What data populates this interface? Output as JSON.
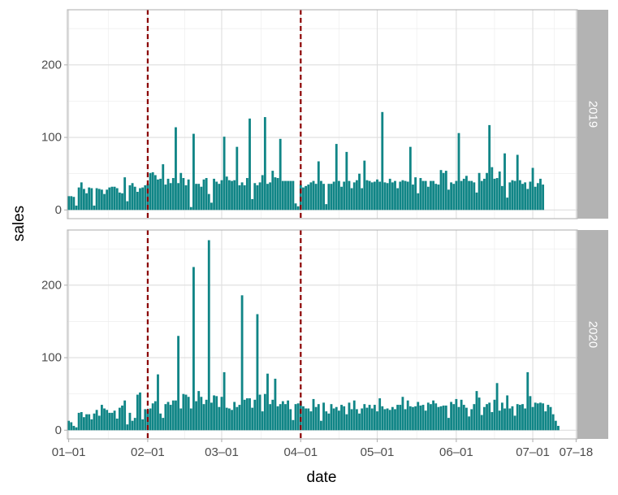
{
  "chart_data": {
    "type": "bar",
    "xlabel": "date",
    "ylabel": "sales",
    "x_ticks": [
      "01–01",
      "02–01",
      "03–01",
      "04–01",
      "05–01",
      "06–01",
      "07–01",
      "07–18"
    ],
    "x_tick_dates": [
      "2000-01-01",
      "2000-02-01",
      "2000-03-01",
      "2000-04-01",
      "2000-05-01",
      "2000-06-01",
      "2000-07-01",
      "2000-07-18"
    ],
    "y_ticks": [
      0,
      100,
      200
    ],
    "ylim": [
      -12,
      276
    ],
    "reference_lines": [
      "2000-02-01",
      "2000-04-01"
    ],
    "bar_color": "#108586",
    "reference_line_color": "#8b0000",
    "strip_color": "#b3b3b3",
    "grid": true,
    "facets": [
      {
        "label": "2019",
        "start_date": "2000-01-01",
        "values": [
          19,
          19,
          18,
          6,
          31,
          38,
          29,
          23,
          31,
          30,
          6,
          30,
          29,
          28,
          22,
          28,
          31,
          32,
          32,
          30,
          24,
          23,
          45,
          12,
          34,
          37,
          32,
          25,
          30,
          31,
          34,
          36,
          51,
          52,
          48,
          42,
          43,
          63,
          35,
          43,
          37,
          44,
          114,
          37,
          51,
          44,
          34,
          42,
          4,
          105,
          36,
          36,
          32,
          42,
          44,
          22,
          10,
          43,
          39,
          36,
          41,
          101,
          46,
          41,
          40,
          41,
          87,
          34,
          38,
          34,
          44,
          126,
          15,
          37,
          34,
          38,
          48,
          128,
          36,
          38,
          54,
          45,
          44,
          98,
          40,
          40,
          40,
          40,
          40,
          9,
          5,
          35,
          31,
          33,
          35,
          38,
          40,
          36,
          67,
          40,
          36,
          8,
          36,
          36,
          39,
          91,
          40,
          32,
          39,
          80,
          40,
          30,
          38,
          41,
          50,
          30,
          68,
          41,
          40,
          38,
          39,
          42,
          39,
          135,
          38,
          37,
          43,
          38,
          40,
          30,
          39,
          41,
          40,
          39,
          87,
          35,
          45,
          23,
          44,
          40,
          40,
          32,
          40,
          40,
          36,
          35,
          55,
          51,
          54,
          28,
          38,
          36,
          40,
          106,
          40,
          43,
          47,
          40,
          40,
          38,
          24,
          51,
          40,
          43,
          51,
          117,
          59,
          43,
          44,
          53,
          33,
          78,
          17,
          38,
          41,
          40,
          76,
          41,
          36,
          38,
          29,
          39,
          58,
          32,
          37,
          43,
          35
        ]
      },
      {
        "label": "2020",
        "start_date": "2000-01-01",
        "values": [
          13,
          11,
          6,
          4,
          24,
          25,
          18,
          22,
          22,
          15,
          23,
          28,
          20,
          35,
          30,
          28,
          24,
          24,
          27,
          16,
          31,
          34,
          41,
          8,
          24,
          13,
          17,
          49,
          52,
          15,
          29,
          28,
          30,
          37,
          40,
          77,
          23,
          17,
          36,
          39,
          35,
          41,
          41,
          130,
          30,
          50,
          49,
          46,
          30,
          225,
          40,
          54,
          46,
          36,
          42,
          262,
          38,
          48,
          47,
          32,
          46,
          80,
          31,
          30,
          28,
          39,
          32,
          35,
          186,
          42,
          44,
          44,
          31,
          42,
          160,
          49,
          26,
          50,
          78,
          36,
          42,
          71,
          33,
          36,
          40,
          36,
          41,
          29,
          14,
          36,
          37,
          40,
          33,
          30,
          30,
          26,
          43,
          32,
          36,
          13,
          38,
          26,
          23,
          36,
          30,
          32,
          27,
          35,
          33,
          22,
          38,
          29,
          41,
          29,
          23,
          30,
          36,
          31,
          35,
          30,
          35,
          26,
          44,
          33,
          29,
          30,
          28,
          32,
          29,
          35,
          35,
          46,
          29,
          41,
          33,
          32,
          33,
          39,
          34,
          35,
          27,
          38,
          36,
          41,
          37,
          32,
          33,
          34,
          34,
          17,
          39,
          36,
          43,
          32,
          42,
          35,
          31,
          19,
          29,
          36,
          54,
          45,
          21,
          32,
          36,
          38,
          25,
          42,
          65,
          27,
          38,
          30,
          48,
          30,
          33,
          20,
          36,
          35,
          36,
          30,
          80,
          47,
          32,
          38,
          37,
          38,
          37,
          26,
          35,
          32,
          22,
          13,
          6
        ]
      }
    ]
  }
}
